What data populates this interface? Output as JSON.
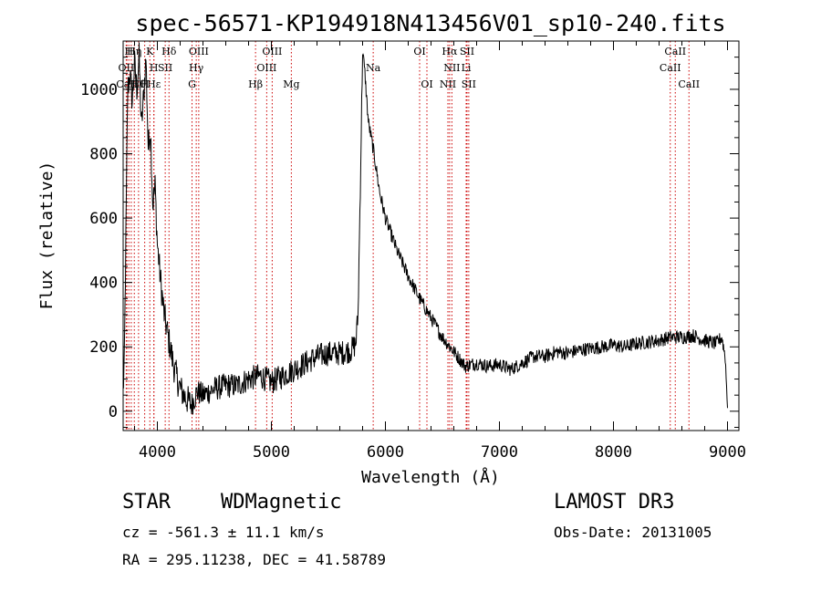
{
  "chart_data": {
    "type": "line",
    "title": "spec-56571-KP194918N413456V01_sp10-240.fits",
    "xlabel": "Wavelength (Å)",
    "ylabel": "Flux (relative)",
    "xlim": [
      3700,
      9100
    ],
    "ylim": [
      -60,
      1150
    ],
    "xticks": [
      4000,
      5000,
      6000,
      7000,
      8000,
      9000
    ],
    "yticks": [
      0,
      200,
      400,
      600,
      800,
      1000
    ],
    "grid": false,
    "series": [
      {
        "name": "flux",
        "anchors": [
          [
            3700,
            60
          ],
          [
            3710,
            150
          ],
          [
            3720,
            420
          ],
          [
            3740,
            1000
          ],
          [
            3760,
            1050
          ],
          [
            3780,
            960
          ],
          [
            3800,
            1080
          ],
          [
            3820,
            1000
          ],
          [
            3840,
            1100
          ],
          [
            3860,
            880
          ],
          [
            3880,
            980
          ],
          [
            3900,
            1100
          ],
          [
            3920,
            820
          ],
          [
            3940,
            880
          ],
          [
            3960,
            640
          ],
          [
            3980,
            700
          ],
          [
            4000,
            520
          ],
          [
            4030,
            400
          ],
          [
            4060,
            300
          ],
          [
            4100,
            220
          ],
          [
            4150,
            130
          ],
          [
            4200,
            70
          ],
          [
            4250,
            40
          ],
          [
            4300,
            20
          ],
          [
            4350,
            60
          ],
          [
            4400,
            50
          ],
          [
            4500,
            70
          ],
          [
            4600,
            80
          ],
          [
            4700,
            80
          ],
          [
            4800,
            100
          ],
          [
            4900,
            110
          ],
          [
            5000,
            90
          ],
          [
            5100,
            110
          ],
          [
            5200,
            130
          ],
          [
            5300,
            150
          ],
          [
            5400,
            170
          ],
          [
            5500,
            180
          ],
          [
            5600,
            180
          ],
          [
            5700,
            190
          ],
          [
            5740,
            210
          ],
          [
            5760,
            300
          ],
          [
            5780,
            700
          ],
          [
            5800,
            1120
          ],
          [
            5820,
            1050
          ],
          [
            5850,
            900
          ],
          [
            5900,
            800
          ],
          [
            5950,
            680
          ],
          [
            6000,
            600
          ],
          [
            6100,
            500
          ],
          [
            6200,
            420
          ],
          [
            6300,
            350
          ],
          [
            6400,
            290
          ],
          [
            6500,
            230
          ],
          [
            6600,
            185
          ],
          [
            6700,
            140
          ],
          [
            6800,
            150
          ],
          [
            6900,
            140
          ],
          [
            7000,
            145
          ],
          [
            7100,
            130
          ],
          [
            7200,
            150
          ],
          [
            7300,
            170
          ],
          [
            7400,
            170
          ],
          [
            7500,
            185
          ],
          [
            7600,
            180
          ],
          [
            7700,
            190
          ],
          [
            7800,
            195
          ],
          [
            7900,
            200
          ],
          [
            8000,
            205
          ],
          [
            8100,
            200
          ],
          [
            8200,
            210
          ],
          [
            8300,
            215
          ],
          [
            8400,
            220
          ],
          [
            8500,
            230
          ],
          [
            8600,
            230
          ],
          [
            8700,
            235
          ],
          [
            8800,
            220
          ],
          [
            8900,
            210
          ],
          [
            8950,
            230
          ],
          [
            8980,
            170
          ],
          [
            9000,
            10
          ]
        ],
        "noise_amplitude": 22
      }
    ],
    "lines": [
      {
        "label": "OII",
        "wavelength": 3727,
        "row": 2
      },
      {
        "label": "CaII",
        "wavelength": 3733,
        "row": 3
      },
      {
        "label": "H",
        "wavelength": 3750,
        "row": 1
      },
      {
        "label": "H",
        "wavelength": 3771,
        "row": 3
      },
      {
        "label": "Hη",
        "wavelength": 3798,
        "row": 1
      },
      {
        "label": "Hθ",
        "wavelength": 3835,
        "row": 3
      },
      {
        "label": "H",
        "wavelength": 3889,
        "row": 3
      },
      {
        "label": "K",
        "wavelength": 3934,
        "row": 1
      },
      {
        "label": "Hε",
        "wavelength": 3970,
        "row": 3
      },
      {
        "label": "H",
        "wavelength": 3969,
        "row": 2
      },
      {
        "label": "SII",
        "wavelength": 4069,
        "row": 2
      },
      {
        "label": "Hδ",
        "wavelength": 4102,
        "row": 1
      },
      {
        "label": "G",
        "wavelength": 4304,
        "row": 3
      },
      {
        "label": "Hγ",
        "wavelength": 4341,
        "row": 2
      },
      {
        "label": "OIII",
        "wavelength": 4363,
        "row": 1
      },
      {
        "label": "Hβ",
        "wavelength": 4861,
        "row": 3
      },
      {
        "label": "OIII",
        "wavelength": 4959,
        "row": 2
      },
      {
        "label": "OIII",
        "wavelength": 5007,
        "row": 1
      },
      {
        "label": "Mg",
        "wavelength": 5175,
        "row": 3
      },
      {
        "label": "Na",
        "wavelength": 5893,
        "row": 2
      },
      {
        "label": "OI",
        "wavelength": 6300,
        "row": 1
      },
      {
        "label": "OI",
        "wavelength": 6364,
        "row": 3
      },
      {
        "label": "NII",
        "wavelength": 6548,
        "row": 3
      },
      {
        "label": "Hα",
        "wavelength": 6563,
        "row": 1
      },
      {
        "label": "NII",
        "wavelength": 6583,
        "row": 2
      },
      {
        "label": "Li",
        "wavelength": 6708,
        "row": 2
      },
      {
        "label": "SII",
        "wavelength": 6716,
        "row": 1
      },
      {
        "label": "SII",
        "wavelength": 6731,
        "row": 3
      },
      {
        "label": "CaII",
        "wavelength": 8498,
        "row": 2
      },
      {
        "label": "CaII",
        "wavelength": 8542,
        "row": 1
      },
      {
        "label": "CaII",
        "wavelength": 8662,
        "row": 3
      }
    ],
    "line_color": "#cc0000",
    "spectrum_color": "#000000"
  },
  "info": {
    "object_class": "STAR",
    "subclass": "WDMagnetic",
    "survey": "LAMOST DR3",
    "cz": "cz = -561.3 ± 11.1 km/s",
    "obs_date": "Obs-Date: 20131005",
    "radec": "RA = 295.11238, DEC =  41.58789"
  }
}
